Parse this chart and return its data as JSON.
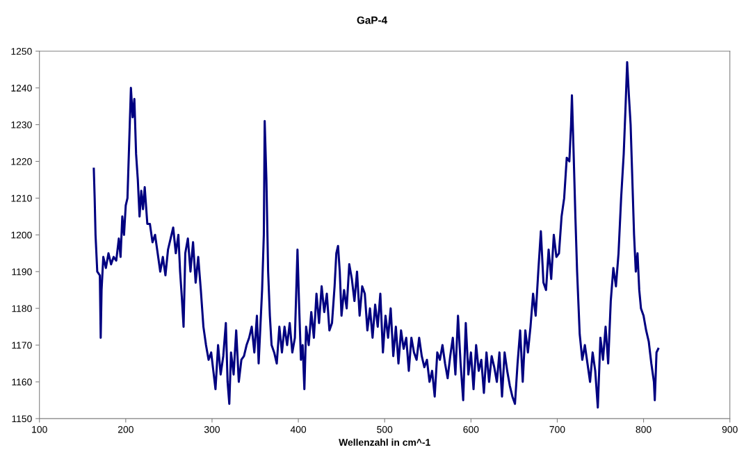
{
  "chart_data": {
    "type": "line",
    "title": "GaP-4",
    "xlabel": "Wellenzahl in cm^-1",
    "xlim": [
      100,
      900
    ],
    "xticks": [
      100,
      200,
      300,
      400,
      500,
      600,
      700,
      800,
      900
    ],
    "ylim": [
      1150,
      1250
    ],
    "yticks": [
      1150,
      1160,
      1170,
      1180,
      1190,
      1200,
      1210,
      1220,
      1230,
      1240,
      1250
    ],
    "grid": false,
    "marker": "none",
    "line_style": "solid",
    "series": [
      {
        "color": "#000080",
        "x": [
          163,
          164,
          165,
          167,
          170,
          171,
          172,
          174,
          177,
          180,
          183,
          186,
          189,
          192,
          194,
          196,
          198,
          200,
          202,
          204,
          206,
          208,
          210,
          212,
          214,
          216,
          218,
          220,
          222,
          225,
          228,
          231,
          234,
          237,
          240,
          243,
          246,
          249,
          252,
          255,
          258,
          261,
          263,
          265,
          267,
          269,
          272,
          275,
          278,
          281,
          284,
          287,
          290,
          293,
          296,
          299,
          302,
          304,
          307,
          310,
          313,
          316,
          318,
          320,
          322,
          325,
          328,
          331,
          334,
          337,
          340,
          343,
          346,
          349,
          352,
          354,
          356,
          358,
          360,
          361,
          363,
          365,
          367,
          369,
          372,
          375,
          378,
          381,
          384,
          387,
          390,
          393,
          396,
          399,
          401,
          403,
          405,
          407,
          409,
          412,
          415,
          418,
          421,
          424,
          427,
          430,
          433,
          436,
          439,
          442,
          444,
          446,
          448,
          450,
          453,
          456,
          459,
          462,
          465,
          468,
          471,
          474,
          477,
          480,
          483,
          486,
          489,
          492,
          495,
          498,
          501,
          504,
          507,
          510,
          513,
          516,
          519,
          522,
          525,
          528,
          531,
          534,
          537,
          540,
          543,
          546,
          549,
          552,
          555,
          558,
          561,
          564,
          567,
          570,
          573,
          576,
          579,
          582,
          585,
          588,
          591,
          594,
          597,
          600,
          603,
          606,
          609,
          612,
          615,
          618,
          621,
          624,
          627,
          630,
          633,
          636,
          639,
          642,
          645,
          648,
          651,
          654,
          657,
          660,
          663,
          666,
          669,
          672,
          675,
          678,
          681,
          684,
          687,
          690,
          693,
          696,
          699,
          702,
          705,
          708,
          711,
          714,
          716,
          717,
          719,
          721,
          723,
          726,
          729,
          732,
          735,
          738,
          741,
          744,
          747,
          750,
          753,
          756,
          759,
          762,
          765,
          768,
          771,
          774,
          777,
          779,
          781,
          783,
          785,
          787,
          789,
          791,
          793,
          795,
          797,
          800,
          803,
          806,
          809,
          812,
          813,
          815,
          817
        ],
        "values": [
          1218,
          1210,
          1200,
          1190,
          1189,
          1172,
          1185,
          1194,
          1191,
          1195,
          1192,
          1194,
          1193,
          1199,
          1194,
          1205,
          1200,
          1208,
          1210,
          1225,
          1240,
          1232,
          1237,
          1222,
          1215,
          1205,
          1212,
          1207,
          1213,
          1203,
          1203,
          1198,
          1200,
          1195,
          1190,
          1194,
          1189,
          1196,
          1199,
          1202,
          1195,
          1200,
          1190,
          1183,
          1175,
          1195,
          1199,
          1190,
          1198,
          1187,
          1194,
          1185,
          1175,
          1170,
          1166,
          1168,
          1162,
          1158,
          1170,
          1162,
          1167,
          1176,
          1160,
          1154,
          1168,
          1162,
          1174,
          1160,
          1166,
          1167,
          1170,
          1172,
          1175,
          1168,
          1178,
          1165,
          1175,
          1185,
          1200,
          1231,
          1215,
          1190,
          1178,
          1170,
          1168,
          1165,
          1175,
          1168,
          1175,
          1170,
          1176,
          1168,
          1172,
          1196,
          1180,
          1166,
          1170,
          1158,
          1175,
          1170,
          1179,
          1172,
          1184,
          1176,
          1186,
          1179,
          1184,
          1174,
          1176,
          1186,
          1195,
          1197,
          1190,
          1178,
          1185,
          1180,
          1192,
          1188,
          1182,
          1190,
          1178,
          1186,
          1184,
          1174,
          1180,
          1172,
          1181,
          1175,
          1184,
          1168,
          1178,
          1172,
          1180,
          1167,
          1175,
          1165,
          1174,
          1169,
          1172,
          1163,
          1172,
          1168,
          1166,
          1172,
          1167,
          1164,
          1166,
          1160,
          1163,
          1156,
          1168,
          1166,
          1170,
          1165,
          1161,
          1167,
          1172,
          1162,
          1178,
          1165,
          1155,
          1176,
          1162,
          1168,
          1158,
          1170,
          1163,
          1166,
          1157,
          1168,
          1160,
          1167,
          1164,
          1160,
          1168,
          1156,
          1168,
          1163,
          1159,
          1156,
          1154,
          1165,
          1174,
          1160,
          1174,
          1168,
          1175,
          1184,
          1178,
          1190,
          1201,
          1187,
          1185,
          1196,
          1188,
          1200,
          1194,
          1195,
          1205,
          1210,
          1221,
          1220,
          1230,
          1238,
          1222,
          1205,
          1190,
          1173,
          1166,
          1170,
          1165,
          1160,
          1168,
          1163,
          1153,
          1172,
          1166,
          1175,
          1165,
          1182,
          1191,
          1186,
          1195,
          1210,
          1222,
          1234,
          1247,
          1238,
          1230,
          1215,
          1200,
          1190,
          1195,
          1185,
          1180,
          1178,
          1174,
          1171,
          1165,
          1160,
          1155,
          1168,
          1169
        ]
      }
    ]
  }
}
